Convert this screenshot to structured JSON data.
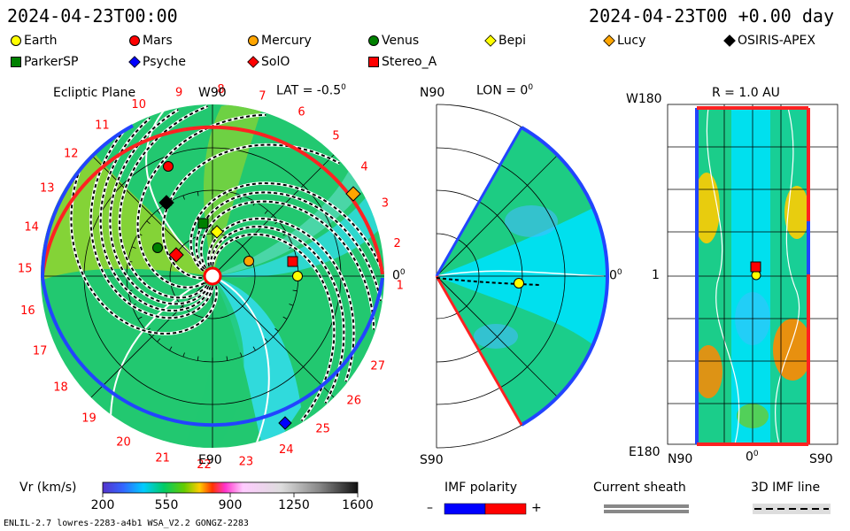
{
  "header": {
    "left_timestamp": "2024-04-23T00:00",
    "right_timestamp": "2024-04-23T00 +0.00 day"
  },
  "bodies": [
    {
      "name": "Earth",
      "shape": "circle",
      "color": "#ffff00"
    },
    {
      "name": "Mars",
      "shape": "circle",
      "color": "#ff0000"
    },
    {
      "name": "Mercury",
      "shape": "circle",
      "color": "#ffa500"
    },
    {
      "name": "Venus",
      "shape": "circle",
      "color": "#008000"
    },
    {
      "name": "Bepi",
      "shape": "diamond",
      "color": "#ffff00"
    },
    {
      "name": "Lucy",
      "shape": "diamond",
      "color": "#ffa500"
    },
    {
      "name": "OSIRIS-APEX",
      "shape": "diamond",
      "color": "#000000"
    },
    {
      "name": "ParkerSP",
      "shape": "square",
      "color": "#008000"
    },
    {
      "name": "Psyche",
      "shape": "diamond",
      "color": "#0000ff"
    },
    {
      "name": "SolO",
      "shape": "diamond",
      "color": "#ff0000"
    },
    {
      "name": "Stereo_A",
      "shape": "square",
      "color": "#ff0000"
    }
  ],
  "ecliptic": {
    "title": "Ecliptic Plane",
    "lat_label": "LAT = -0.5",
    "degree_symbol": "0",
    "top_label": "W90",
    "bottom_label": "E90",
    "right_label": "0",
    "rotation_numbers": [
      "1",
      "2",
      "3",
      "4",
      "5",
      "6",
      "7",
      "8",
      "9",
      "10",
      "11",
      "12",
      "13",
      "14",
      "15",
      "16",
      "17",
      "18",
      "19",
      "20",
      "21",
      "22",
      "23",
      "24",
      "25",
      "26",
      "27"
    ]
  },
  "meridional": {
    "top_label": "N90",
    "lon_label": "LON = 0",
    "degree_symbol": "0",
    "bottom_label": "S90",
    "right_label": "0"
  },
  "radial": {
    "r_label": "R = 1.0 AU",
    "top_left_label": "W180",
    "mid_left_label": "1",
    "bottom_left_label": "E180",
    "bottom_labels": [
      "N90",
      "0",
      "S90"
    ],
    "degree_symbol": "0"
  },
  "colorbar": {
    "title": "Vr (km/s)",
    "ticks": [
      "200",
      "550",
      "900",
      "1250",
      "1600"
    ],
    "range": [
      200,
      1600
    ]
  },
  "imf_polarity": {
    "title": "IMF polarity",
    "minus": "–",
    "plus": "+",
    "neg_color": "#0000ff",
    "pos_color": "#ff0000"
  },
  "current_sheath": {
    "title": "Current sheath"
  },
  "imf_line": {
    "title": "3D IMF line"
  },
  "footer": {
    "left": "ENLIL-2.7 lowres-2283-a4b1 WSA_V2.2 GONGZ-2283"
  }
}
